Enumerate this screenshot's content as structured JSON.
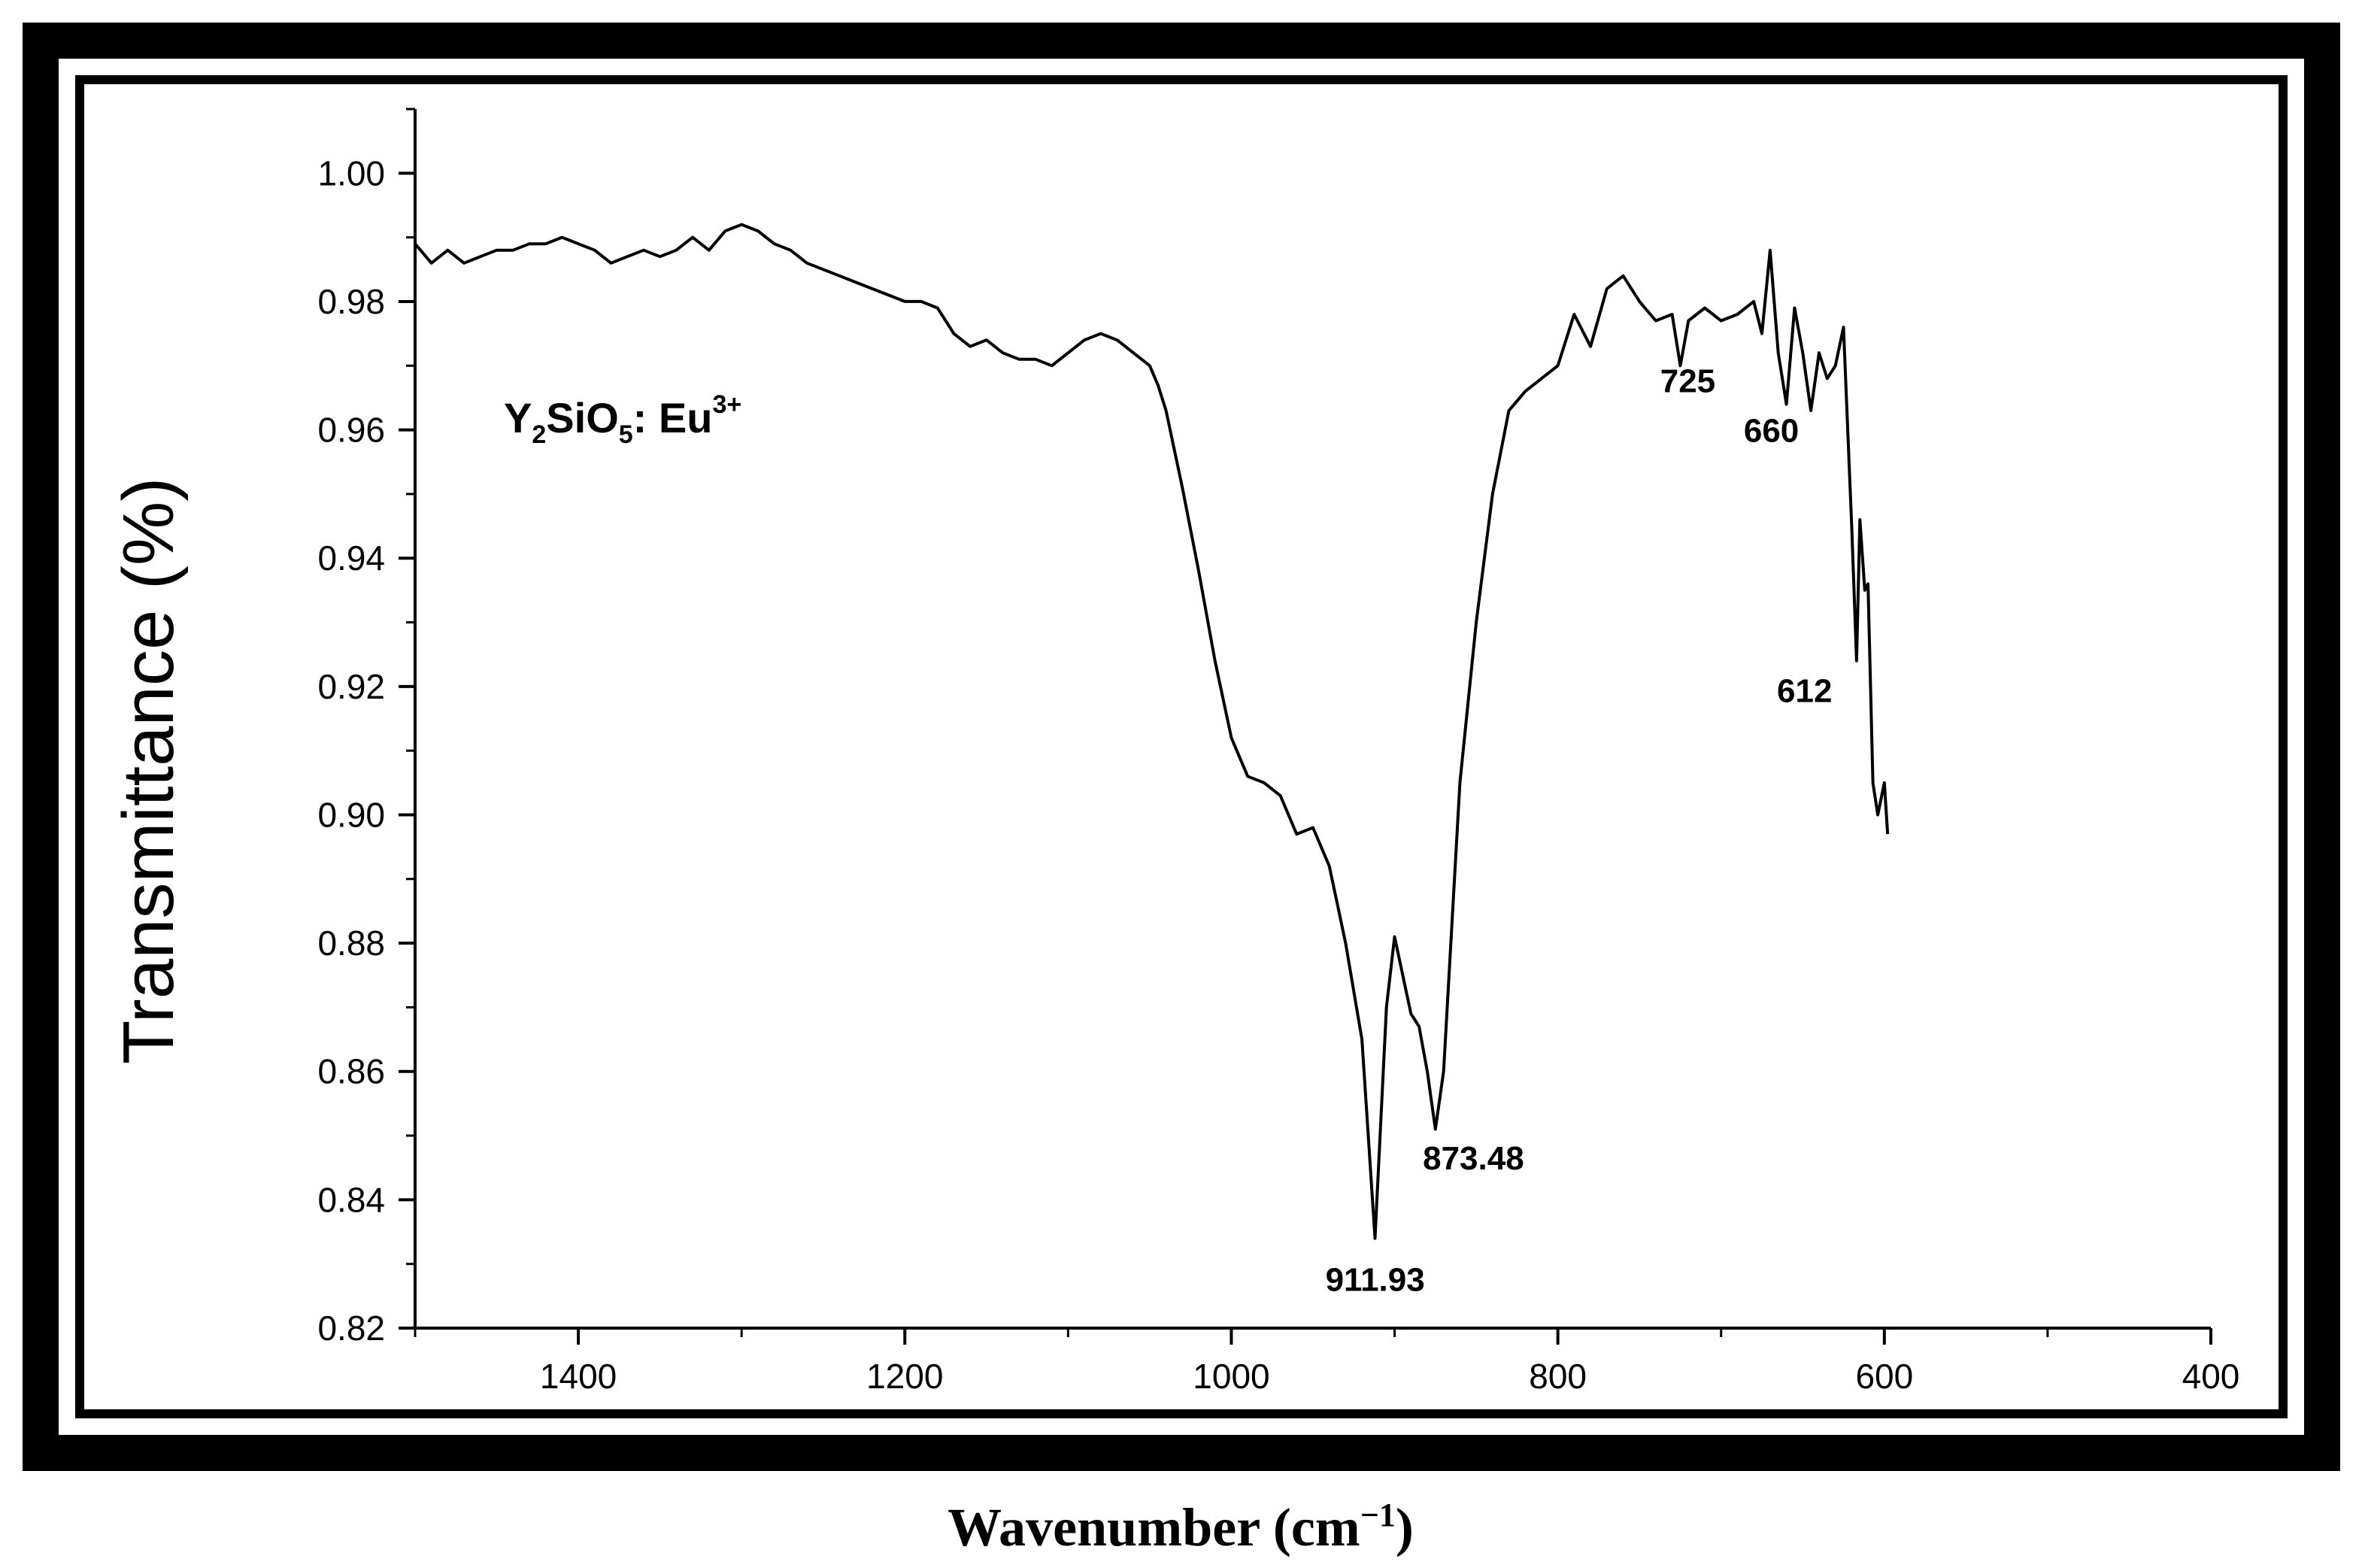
{
  "chart_data": {
    "type": "line",
    "title": "Y2SiO5: Eu3+",
    "title_parts": {
      "base1": "Y",
      "sub1": "2",
      "base2": "SiO",
      "sub2": "5",
      "base3": ": Eu",
      "sup": "3+"
    },
    "xlabel_main": "Wavenumber (cm",
    "xlabel_sup": "−1",
    "xlabel_close": ")",
    "ylabel": "Transmittance (%)",
    "xlim": [
      1500,
      400
    ],
    "ylim": [
      0.82,
      1.01
    ],
    "x_ticks": [
      "1400",
      "1200",
      "1000",
      "800",
      "600",
      "400"
    ],
    "x_tick_values": [
      1400,
      1200,
      1000,
      800,
      600,
      400
    ],
    "y_ticks": [
      "0.82",
      "0.84",
      "0.86",
      "0.88",
      "0.90",
      "0.92",
      "0.94",
      "0.96",
      "0.98",
      "1.00"
    ],
    "y_tick_values": [
      0.82,
      0.84,
      0.86,
      0.88,
      0.9,
      0.92,
      0.94,
      0.96,
      0.98,
      1.0
    ],
    "annotations": [
      {
        "text": "911.93",
        "x": 911.93,
        "y": 0.834
      },
      {
        "text": "873.48",
        "x": 873.48,
        "y": 0.85
      },
      {
        "text": "725",
        "x": 725,
        "y": 0.97
      },
      {
        "text": "660",
        "x": 660,
        "y": 0.964
      },
      {
        "text": "612",
        "x": 612,
        "y": 0.924
      }
    ],
    "series": [
      {
        "name": "Y2SiO5: Eu3+",
        "x": [
          1500,
          1490,
          1480,
          1470,
          1460,
          1450,
          1440,
          1430,
          1420,
          1410,
          1400,
          1390,
          1380,
          1370,
          1360,
          1350,
          1340,
          1330,
          1320,
          1310,
          1300,
          1290,
          1280,
          1270,
          1260,
          1250,
          1240,
          1230,
          1220,
          1210,
          1200,
          1190,
          1180,
          1170,
          1160,
          1150,
          1140,
          1130,
          1120,
          1110,
          1100,
          1090,
          1080,
          1070,
          1060,
          1050,
          1045,
          1040,
          1030,
          1020,
          1010,
          1000,
          990,
          980,
          970,
          960,
          950,
          940,
          930,
          920,
          912,
          905,
          900,
          895,
          890,
          885,
          880,
          875,
          870,
          860,
          850,
          840,
          830,
          820,
          810,
          800,
          790,
          780,
          770,
          760,
          750,
          740,
          730,
          725,
          720,
          710,
          700,
          690,
          680,
          675,
          670,
          665,
          660,
          655,
          650,
          645,
          640,
          635,
          630,
          625,
          620,
          617,
          615,
          612,
          610,
          607,
          604,
          600,
          598
        ],
        "values": [
          0.989,
          0.986,
          0.988,
          0.986,
          0.987,
          0.988,
          0.988,
          0.989,
          0.989,
          0.99,
          0.989,
          0.988,
          0.986,
          0.987,
          0.988,
          0.987,
          0.988,
          0.99,
          0.988,
          0.991,
          0.992,
          0.991,
          0.989,
          0.988,
          0.986,
          0.985,
          0.984,
          0.983,
          0.982,
          0.981,
          0.98,
          0.98,
          0.979,
          0.975,
          0.973,
          0.974,
          0.972,
          0.971,
          0.971,
          0.97,
          0.972,
          0.974,
          0.975,
          0.974,
          0.972,
          0.97,
          0.967,
          0.963,
          0.951,
          0.938,
          0.924,
          0.912,
          0.906,
          0.905,
          0.903,
          0.897,
          0.898,
          0.892,
          0.88,
          0.865,
          0.834,
          0.87,
          0.881,
          0.875,
          0.869,
          0.867,
          0.86,
          0.851,
          0.86,
          0.905,
          0.93,
          0.95,
          0.963,
          0.966,
          0.968,
          0.97,
          0.978,
          0.973,
          0.982,
          0.984,
          0.98,
          0.977,
          0.978,
          0.97,
          0.977,
          0.979,
          0.977,
          0.978,
          0.98,
          0.975,
          0.988,
          0.972,
          0.964,
          0.979,
          0.972,
          0.963,
          0.972,
          0.968,
          0.97,
          0.976,
          0.945,
          0.924,
          0.946,
          0.935,
          0.936,
          0.905,
          0.9,
          0.905,
          0.897
        ]
      }
    ]
  }
}
